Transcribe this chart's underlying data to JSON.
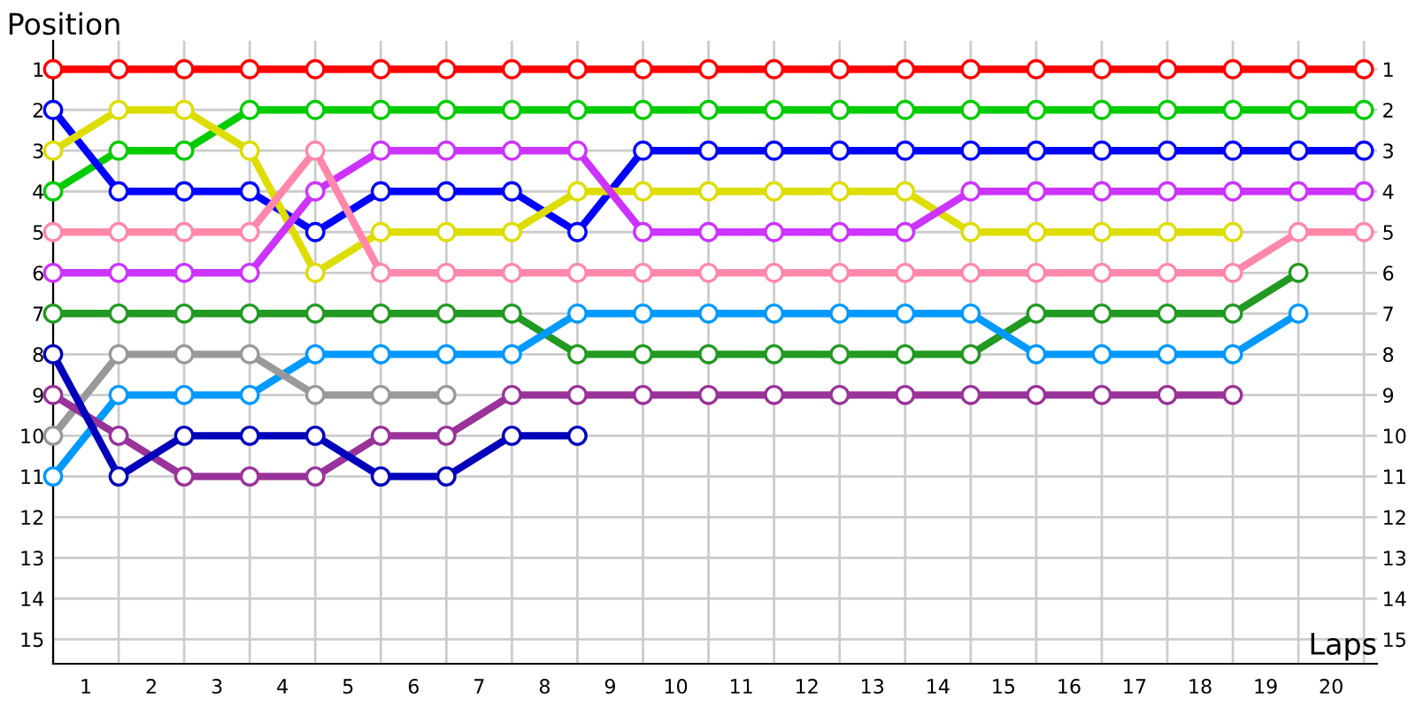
{
  "chart_data": {
    "type": "line",
    "xlabel": "Laps",
    "ylabel": "Position",
    "x": [
      0,
      1,
      2,
      3,
      4,
      5,
      6,
      7,
      8,
      9,
      10,
      11,
      12,
      13,
      14,
      15,
      16,
      17,
      18,
      19,
      20
    ],
    "series": [
      {
        "color": "#ff0000",
        "values": [
          1,
          1,
          1,
          1,
          1,
          1,
          1,
          1,
          1,
          1,
          1,
          1,
          1,
          1,
          1,
          1,
          1,
          1,
          1,
          1,
          1
        ]
      },
      {
        "color": "#00cc00",
        "values": [
          4,
          3,
          3,
          2,
          2,
          2,
          2,
          2,
          2,
          2,
          2,
          2,
          2,
          2,
          2,
          2,
          2,
          2,
          2,
          2,
          2
        ]
      },
      {
        "color": "#0000ff",
        "values": [
          2,
          4,
          4,
          4,
          5,
          4,
          4,
          4,
          5,
          3,
          3,
          3,
          3,
          3,
          3,
          3,
          3,
          3,
          3,
          3,
          3
        ]
      },
      {
        "color": "#dddd00",
        "values": [
          3,
          2,
          2,
          3,
          6,
          5,
          5,
          5,
          4,
          4,
          4,
          4,
          4,
          4,
          5,
          5,
          5,
          5,
          5,
          null,
          null
        ]
      },
      {
        "color": "#cc33ff",
        "values": [
          6,
          6,
          6,
          6,
          4,
          3,
          3,
          3,
          3,
          5,
          5,
          5,
          5,
          5,
          4,
          4,
          4,
          4,
          4,
          4,
          4
        ]
      },
      {
        "color": "#ff88aa",
        "values": [
          5,
          5,
          5,
          5,
          3,
          6,
          6,
          6,
          6,
          6,
          6,
          6,
          6,
          6,
          6,
          6,
          6,
          6,
          6,
          5,
          5
        ]
      },
      {
        "color": "#229922",
        "values": [
          7,
          7,
          7,
          7,
          7,
          7,
          7,
          7,
          8,
          8,
          8,
          8,
          8,
          8,
          8,
          7,
          7,
          7,
          7,
          6,
          null
        ]
      },
      {
        "color": "#0099ff",
        "values": [
          11,
          9,
          9,
          9,
          8,
          8,
          8,
          8,
          7,
          7,
          7,
          7,
          7,
          7,
          7,
          8,
          8,
          8,
          8,
          7,
          null
        ]
      },
      {
        "color": "#999999",
        "values": [
          10,
          8,
          8,
          8,
          9,
          9,
          9,
          null,
          null,
          null,
          null,
          null,
          null,
          null,
          null,
          null,
          null,
          null,
          null,
          null,
          null
        ]
      },
      {
        "color": "#993399",
        "values": [
          9,
          10,
          11,
          11,
          11,
          10,
          10,
          9,
          9,
          9,
          9,
          9,
          9,
          9,
          9,
          9,
          9,
          9,
          9,
          null,
          null
        ]
      },
      {
        "color": "#0000bb",
        "values": [
          8,
          11,
          10,
          10,
          10,
          11,
          11,
          10,
          10,
          null,
          null,
          null,
          null,
          null,
          null,
          null,
          null,
          null,
          null,
          null,
          null
        ]
      }
    ],
    "xlim": [
      0,
      20.2
    ],
    "xticks": [
      {
        "value": 0,
        "label": null
      },
      {
        "value": 1,
        "label": null
      },
      {
        "value": 2,
        "label": null
      },
      {
        "value": 3,
        "label": null
      },
      {
        "value": 4,
        "label": null
      },
      {
        "value": 5,
        "label": null
      },
      {
        "value": 6,
        "label": null
      },
      {
        "value": 7,
        "label": null
      },
      {
        "value": 8,
        "label": null
      },
      {
        "value": 9,
        "label": null
      },
      {
        "value": 10,
        "label": null
      },
      {
        "value": 11,
        "label": null
      },
      {
        "value": 12,
        "label": null
      },
      {
        "value": 13,
        "label": null
      },
      {
        "value": 14,
        "label": null
      },
      {
        "value": 15,
        "label": null
      },
      {
        "value": 16,
        "label": null
      },
      {
        "value": 17,
        "label": null
      },
      {
        "value": 18,
        "label": null
      },
      {
        "value": 19,
        "label": null
      },
      {
        "value": 20,
        "label": null
      },
      {
        "value": 0.5,
        "label": "1"
      },
      {
        "value": 1.5,
        "label": "2"
      },
      {
        "value": 2.5,
        "label": "3"
      },
      {
        "value": 3.5,
        "label": "4"
      },
      {
        "value": 4.5,
        "label": "5"
      },
      {
        "value": 5.5,
        "label": "6"
      },
      {
        "value": 6.5,
        "label": "7"
      },
      {
        "value": 7.5,
        "label": "8"
      },
      {
        "value": 8.5,
        "label": "9"
      },
      {
        "value": 9.5,
        "label": "10"
      },
      {
        "value": 10.5,
        "label": "11"
      },
      {
        "value": 11.5,
        "label": "12"
      },
      {
        "value": 12.5,
        "label": "13"
      },
      {
        "value": 13.5,
        "label": "14"
      },
      {
        "value": 14.5,
        "label": "15"
      },
      {
        "value": 15.5,
        "label": "16"
      },
      {
        "value": 16.5,
        "label": "17"
      },
      {
        "value": 17.5,
        "label": "18"
      },
      {
        "value": 18.5,
        "label": "19"
      },
      {
        "value": 19.5,
        "label": "20"
      }
    ],
    "ylim": [
      15.6,
      0.3
    ],
    "yticks": [
      1,
      2,
      3,
      4,
      5,
      6,
      7,
      8,
      9,
      10,
      11,
      12,
      13,
      14,
      15
    ],
    "y2lim": [
      15.6,
      0.3
    ],
    "y2ticks": [
      1,
      2,
      3,
      4,
      5,
      6,
      7,
      8,
      9,
      10,
      11,
      12,
      13,
      14,
      15
    ],
    "grid": true,
    "marker": "circle",
    "line_style": "solid"
  }
}
